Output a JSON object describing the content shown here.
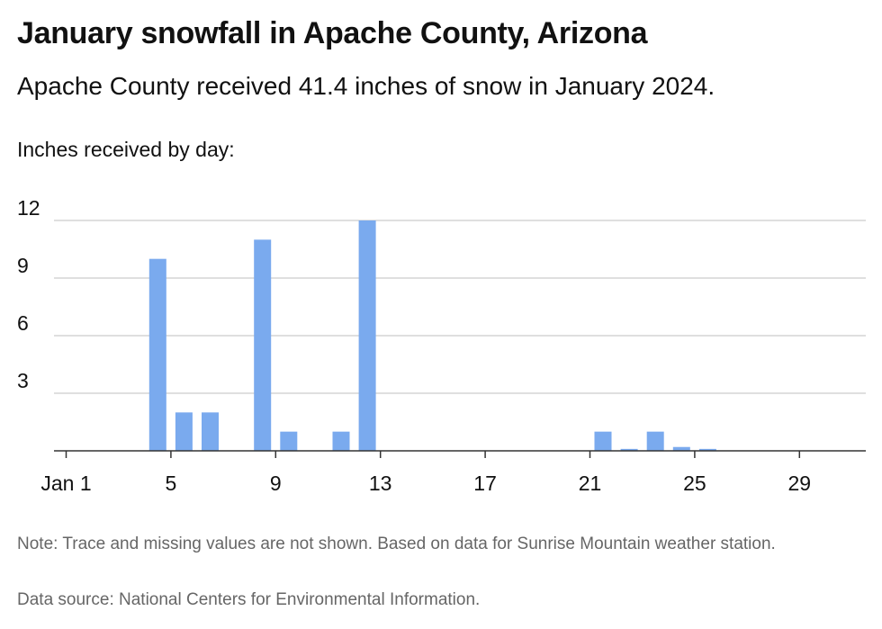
{
  "header": {
    "title": "January snowfall in Apache County, Arizona",
    "subtitle": "Apache County received 41.4 inches of snow in January 2024."
  },
  "chart_data": {
    "type": "bar",
    "title": "January snowfall in Apache County, Arizona",
    "subtitle": "Apache County received 41.4 inches of snow in January 2024.",
    "ylabel": "Inches received by day:",
    "xlabel": "",
    "x": [
      1,
      2,
      3,
      4,
      5,
      6,
      7,
      8,
      9,
      10,
      11,
      12,
      13,
      14,
      15,
      16,
      17,
      18,
      19,
      20,
      21,
      22,
      23,
      24,
      25,
      26,
      27,
      28,
      29,
      30,
      31
    ],
    "values": [
      0,
      0,
      0,
      10,
      2,
      2,
      0,
      11,
      1,
      0,
      1,
      12,
      0,
      0,
      0,
      0,
      0,
      0,
      0,
      0,
      1,
      0.1,
      1,
      0.2,
      0.1,
      0,
      0,
      0,
      0,
      0,
      0
    ],
    "x_ticks": [
      1,
      5,
      9,
      13,
      17,
      21,
      25,
      29
    ],
    "x_tick_labels": [
      "Jan 1",
      "5",
      "9",
      "13",
      "17",
      "21",
      "25",
      "29"
    ],
    "y_ticks": [
      3,
      6,
      9,
      12
    ],
    "y_tick_labels": [
      "3",
      "6",
      "9",
      "12"
    ],
    "xlim": [
      1,
      31
    ],
    "ylim": [
      0,
      12
    ],
    "grid": true,
    "bar_color": "#7aaaee",
    "axis_color": "#333333",
    "grid_color": "#cccccc"
  },
  "footer": {
    "note": "Note: Trace and missing values are not shown. Based on data for Sunrise Mountain weather station.",
    "source": "Data source: National Centers for Environmental Information."
  }
}
